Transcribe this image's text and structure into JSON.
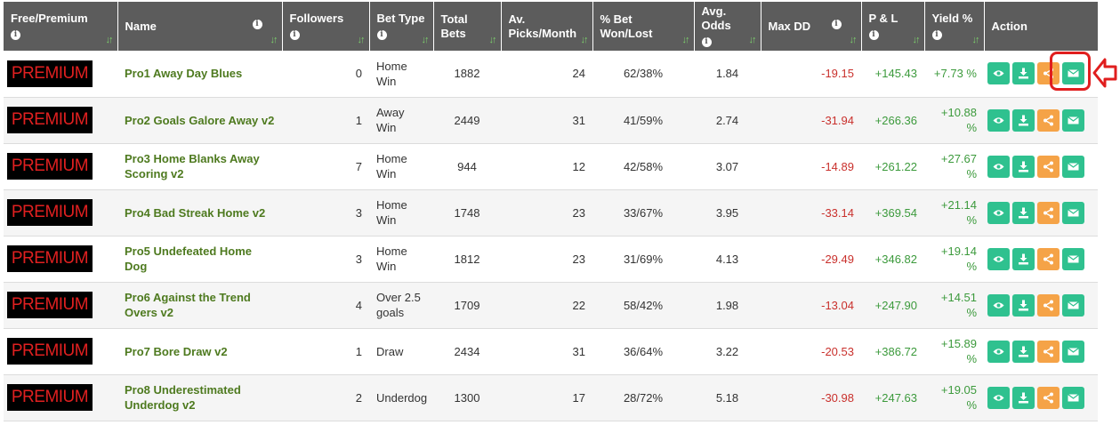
{
  "columns": [
    {
      "label": "Free/Premium",
      "info": true,
      "sort": true
    },
    {
      "label": "Name",
      "info": true,
      "sort": true
    },
    {
      "label": "Followers",
      "info": true,
      "sort": true
    },
    {
      "label": "Bet Type",
      "info": true,
      "sort": true
    },
    {
      "label": "Total Bets",
      "info": false,
      "sort": true
    },
    {
      "label": "Av. Picks/Month",
      "info": false,
      "sort": true
    },
    {
      "label": "% Bet Won/Lost",
      "info": false,
      "sort": true
    },
    {
      "label": "Avg. Odds",
      "info": true,
      "sort": true
    },
    {
      "label": "Max DD",
      "info": true,
      "sort": true
    },
    {
      "label": "P & L",
      "info": true,
      "sort": true
    },
    {
      "label": "Yield %",
      "info": true,
      "sort": true
    },
    {
      "label": "Action",
      "info": false,
      "sort": false
    }
  ],
  "rows": [
    {
      "tier": "PREMIUM",
      "name": "Pro1 Away Day Blues",
      "followers": "0",
      "bet_type": "Home Win",
      "total_bets": "1882",
      "picks_month": "24",
      "won_lost": "62/38%",
      "avg_odds": "1.84",
      "max_dd": "-19.15",
      "pl": "+145.43",
      "yield": "+7.73 %"
    },
    {
      "tier": "PREMIUM",
      "name": "Pro2 Goals Galore Away v2",
      "followers": "1",
      "bet_type": "Away Win",
      "total_bets": "2449",
      "picks_month": "31",
      "won_lost": "41/59%",
      "avg_odds": "2.74",
      "max_dd": "-31.94",
      "pl": "+266.36",
      "yield": "+10.88 %"
    },
    {
      "tier": "PREMIUM",
      "name": "Pro3 Home Blanks Away Scoring v2",
      "followers": "7",
      "bet_type": "Home Win",
      "total_bets": "944",
      "picks_month": "12",
      "won_lost": "42/58%",
      "avg_odds": "3.07",
      "max_dd": "-14.89",
      "pl": "+261.22",
      "yield": "+27.67 %"
    },
    {
      "tier": "PREMIUM",
      "name": "Pro4 Bad Streak Home v2",
      "followers": "3",
      "bet_type": "Home Win",
      "total_bets": "1748",
      "picks_month": "23",
      "won_lost": "33/67%",
      "avg_odds": "3.95",
      "max_dd": "-33.14",
      "pl": "+369.54",
      "yield": "+21.14 %"
    },
    {
      "tier": "PREMIUM",
      "name": "Pro5 Undefeated Home Dog",
      "followers": "3",
      "bet_type": "Home Win",
      "total_bets": "1812",
      "picks_month": "23",
      "won_lost": "31/69%",
      "avg_odds": "4.13",
      "max_dd": "-29.49",
      "pl": "+346.82",
      "yield": "+19.14 %"
    },
    {
      "tier": "PREMIUM",
      "name": "Pro6 Against the Trend Overs v2",
      "followers": "4",
      "bet_type": "Over 2.5 goals",
      "total_bets": "1709",
      "picks_month": "22",
      "won_lost": "58/42%",
      "avg_odds": "1.98",
      "max_dd": "-13.04",
      "pl": "+247.90",
      "yield": "+14.51 %"
    },
    {
      "tier": "PREMIUM",
      "name": "Pro7 Bore Draw v2",
      "followers": "1",
      "bet_type": "Draw",
      "total_bets": "2434",
      "picks_month": "31",
      "won_lost": "36/64%",
      "avg_odds": "3.22",
      "max_dd": "-20.53",
      "pl": "+386.72",
      "yield": "+15.89 %"
    },
    {
      "tier": "PREMIUM",
      "name": "Pro8 Underestimated Underdog v2",
      "followers": "2",
      "bet_type": "Underdog",
      "total_bets": "1300",
      "picks_month": "17",
      "won_lost": "28/72%",
      "avg_odds": "5.18",
      "max_dd": "-30.98",
      "pl": "+247.63",
      "yield": "+19.05 %"
    }
  ],
  "actions": [
    {
      "name": "view-button",
      "icon": "eye-icon",
      "color": "#2fc18f"
    },
    {
      "name": "download-button",
      "icon": "download-icon",
      "color": "#2fc18f"
    },
    {
      "name": "share-button",
      "icon": "share-icon",
      "color": "#f5a347"
    },
    {
      "name": "email-button",
      "icon": "envelope-icon",
      "color": "#2fc18f"
    }
  ],
  "info_glyph": "i",
  "sort_glyph": "↓↑",
  "colors": {
    "header_bg": "#5c5c5c",
    "name_text": "#4e7a1f",
    "negative": "#c9302c",
    "positive": "#3c9a3c",
    "premium_text": "#e02020",
    "highlight": "#e01e1e"
  }
}
